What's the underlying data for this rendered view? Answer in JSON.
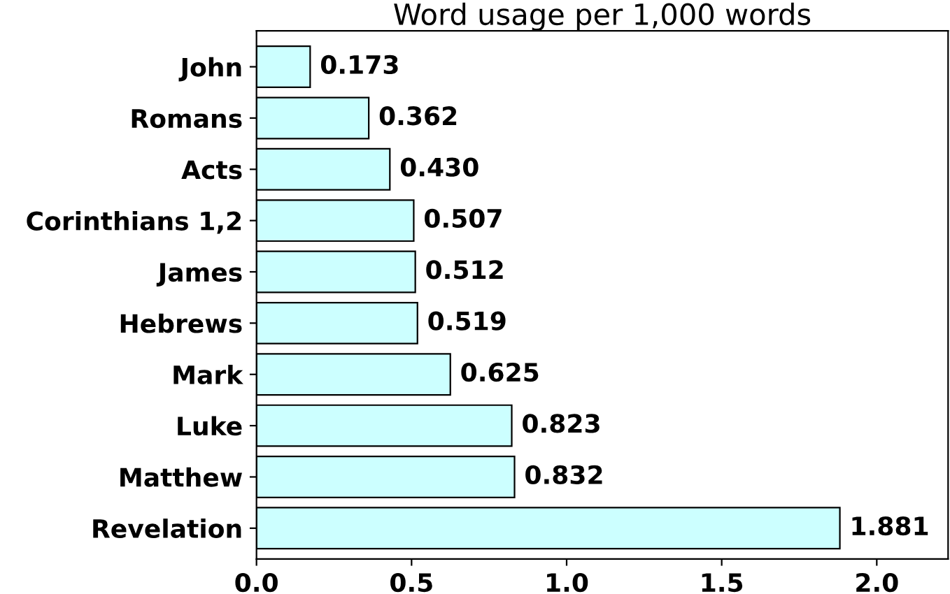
{
  "chart_data": {
    "type": "bar",
    "orientation": "horizontal",
    "title": "Word usage per 1,000 words",
    "categories": [
      "John",
      "Romans",
      "Acts",
      "Corinthians 1,2",
      "James",
      "Hebrews",
      "Mark",
      "Luke",
      "Matthew",
      "Revelation"
    ],
    "values": [
      0.173,
      0.362,
      0.43,
      0.507,
      0.512,
      0.519,
      0.625,
      0.823,
      0.832,
      1.881
    ],
    "value_labels": [
      "0.173",
      "0.362",
      "0.430",
      "0.507",
      "0.512",
      "0.519",
      "0.625",
      "0.823",
      "0.832",
      "1.881"
    ],
    "color": "#ccffff",
    "xlim": [
      0,
      2.23
    ],
    "xticks": [
      {
        "value": 0,
        "label": "0.0"
      },
      0.5,
      {
        "value": 1,
        "label": "1.0"
      },
      1.5,
      {
        "value": 2,
        "label": "2.0"
      }
    ],
    "grid": false,
    "legend": false
  }
}
